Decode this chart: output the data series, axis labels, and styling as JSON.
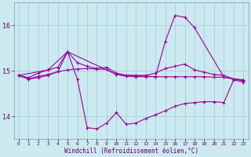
{
  "xlabel": "Windchill (Refroidissement éolien,°C)",
  "bg_color": "#cce9f0",
  "grid_color": "#aad4de",
  "line_color": "#990099",
  "x": [
    0,
    1,
    2,
    3,
    4,
    5,
    6,
    7,
    8,
    9,
    10,
    11,
    12,
    13,
    14,
    15,
    16,
    17,
    18,
    19,
    20,
    21,
    22,
    23
  ],
  "series1": [
    14.9,
    14.82,
    14.88,
    14.92,
    14.98,
    15.02,
    15.04,
    15.05,
    15.04,
    15.03,
    14.92,
    14.88,
    14.87,
    14.87,
    14.87,
    14.87,
    14.87,
    14.87,
    14.87,
    14.87,
    14.86,
    14.86,
    14.82,
    14.8
  ],
  "series2": [
    14.9,
    14.82,
    14.85,
    14.9,
    14.98,
    15.42,
    14.82,
    13.75,
    13.72,
    13.85,
    14.08,
    13.82,
    13.85,
    13.95,
    14.03,
    14.12,
    14.22,
    14.28,
    14.3,
    14.32,
    14.32,
    14.3,
    14.8,
    14.75
  ],
  "series3": [
    14.9,
    14.85,
    14.95,
    15.02,
    15.08,
    15.42,
    15.18,
    15.1,
    15.05,
    15.08,
    14.95,
    14.9,
    14.9,
    14.9,
    14.95,
    15.05,
    15.1,
    15.15,
    15.02,
    14.97,
    14.92,
    14.9,
    14.82,
    14.8
  ],
  "series4_x": [
    0,
    3,
    5,
    10,
    14,
    15,
    16,
    17,
    18,
    21,
    22,
    23
  ],
  "series4_y": [
    14.9,
    15.02,
    15.42,
    14.92,
    14.87,
    15.65,
    16.22,
    16.18,
    15.95,
    14.86,
    14.82,
    14.78
  ],
  "ylim": [
    13.5,
    16.5
  ],
  "yticks": [
    14,
    15,
    16
  ],
  "xticks": [
    0,
    1,
    2,
    3,
    4,
    5,
    6,
    7,
    8,
    9,
    10,
    11,
    12,
    13,
    14,
    15,
    16,
    17,
    18,
    19,
    20,
    21,
    22,
    23
  ]
}
